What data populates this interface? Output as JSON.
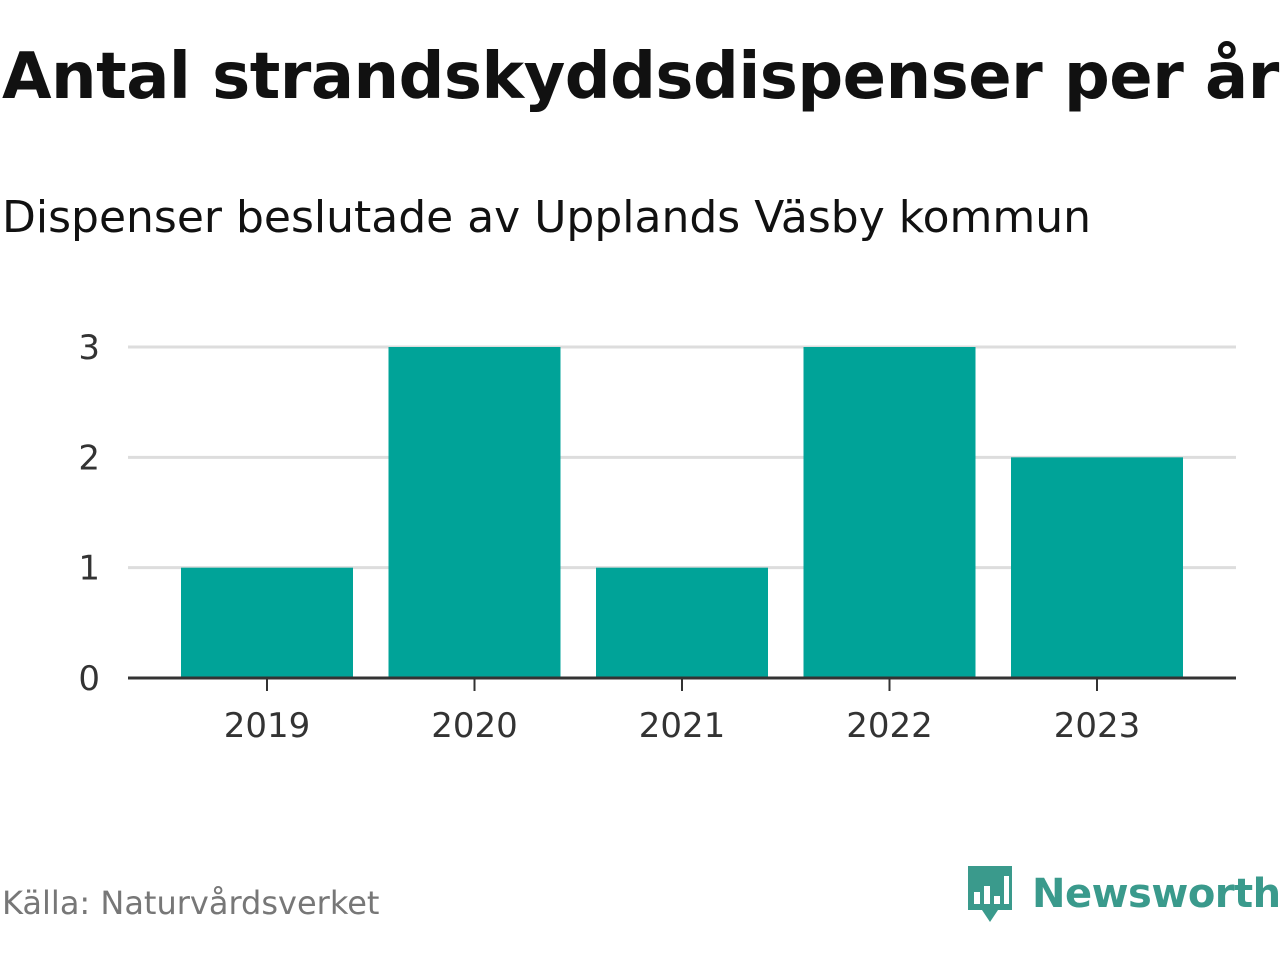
{
  "chart_data": {
    "type": "bar",
    "title": "Antal strandskyddsdispenser per år",
    "subtitle": "Dispenser beslutade av Upplands Väsby kommun",
    "categories": [
      "2019",
      "2020",
      "2021",
      "2022",
      "2023"
    ],
    "values": [
      1,
      3,
      1,
      3,
      2
    ],
    "yticks": [
      "0",
      "1",
      "2",
      "3"
    ],
    "ylim": [
      0,
      3
    ],
    "xlabel": "",
    "ylabel": "",
    "grid": true,
    "bar_color": "#00a398"
  },
  "footer": {
    "source": "Källa: Naturvårdsverket",
    "brand": "Newsworthy",
    "brand_icon": "newsworthy-logo-icon",
    "brand_color": "#3a9a8c"
  }
}
